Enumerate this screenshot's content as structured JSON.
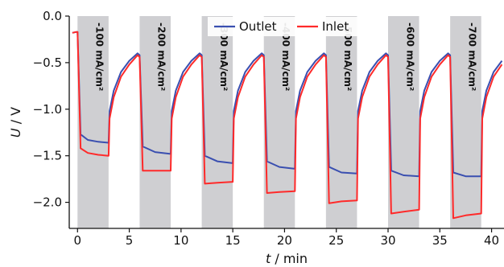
{
  "chart_data": {
    "type": "line",
    "xlabel_var": "t",
    "xlabel_unit": " / min",
    "ylabel_var": "U",
    "ylabel_unit": " / V",
    "xlim": [
      -0.8,
      41.2
    ],
    "ylim": [
      -2.28,
      0.0
    ],
    "xticks": [
      0,
      5,
      10,
      15,
      20,
      25,
      30,
      35,
      40
    ],
    "yticks": [
      0.0,
      -0.5,
      -1.0,
      -1.5,
      -2.0
    ],
    "ytick_labels": [
      "0.0",
      "−0.5",
      "−1.0",
      "−1.5",
      "−2.0"
    ],
    "grid": false,
    "legend_position": "top-center",
    "colors": {
      "outlet": "#3a4fb0",
      "inlet": "#ff2a2a",
      "band": "#cfcfd2"
    },
    "current_steps": [
      {
        "label": "-100 mA/cm²",
        "t_start": 0,
        "t_end": 3,
        "outlet_plateau": -1.36,
        "inlet_plateau": -1.5
      },
      {
        "label": "-200 mA/cm²",
        "t_start": 6,
        "t_end": 9,
        "outlet_plateau": -1.48,
        "inlet_plateau": -1.66
      },
      {
        "label": "-300 mA/cm²",
        "t_start": 12,
        "t_end": 15,
        "outlet_plateau": -1.58,
        "inlet_plateau": -1.78
      },
      {
        "label": "-400 mA/cm²",
        "t_start": 18,
        "t_end": 21,
        "outlet_plateau": -1.64,
        "inlet_plateau": -1.88
      },
      {
        "label": "-500 mA/cm²",
        "t_start": 24,
        "t_end": 27,
        "outlet_plateau": -1.69,
        "inlet_plateau": -1.98
      },
      {
        "label": "-600 mA/cm²",
        "t_start": 30,
        "t_end": 33,
        "outlet_plateau": -1.72,
        "inlet_plateau": -2.08
      },
      {
        "label": "-700 mA/cm²",
        "t_start": 36,
        "t_end": 39,
        "outlet_plateau": -1.72,
        "inlet_plateau": -2.12
      }
    ],
    "series": [
      {
        "name": "Outlet",
        "x": [
          -0.5,
          -0.1,
          0.0,
          0.3,
          1.0,
          2.0,
          3.0,
          3.1,
          3.5,
          4.2,
          5.0,
          5.8,
          6.0,
          6.3,
          7.5,
          9.0,
          9.1,
          9.5,
          10.2,
          11.0,
          11.8,
          12.0,
          12.3,
          13.5,
          15.0,
          15.1,
          15.5,
          16.2,
          17.0,
          17.8,
          18.0,
          18.3,
          19.5,
          21.0,
          21.1,
          21.5,
          22.2,
          23.0,
          23.8,
          24.0,
          24.3,
          25.5,
          27.0,
          27.1,
          27.5,
          28.2,
          29.0,
          29.8,
          30.0,
          30.3,
          31.5,
          33.0,
          33.1,
          33.5,
          34.2,
          35.0,
          35.8,
          36.0,
          36.3,
          37.5,
          39.0,
          39.1,
          39.5,
          40.2,
          41.0
        ],
        "y": [
          -0.18,
          -0.17,
          -0.17,
          -1.27,
          -1.33,
          -1.35,
          -1.36,
          -1.02,
          -0.8,
          -0.6,
          -0.48,
          -0.4,
          -0.42,
          -1.4,
          -1.46,
          -1.48,
          -1.02,
          -0.8,
          -0.6,
          -0.48,
          -0.4,
          -0.42,
          -1.5,
          -1.56,
          -1.58,
          -1.02,
          -0.8,
          -0.6,
          -0.48,
          -0.4,
          -0.42,
          -1.56,
          -1.62,
          -1.64,
          -1.02,
          -0.8,
          -0.6,
          -0.48,
          -0.4,
          -0.42,
          -1.62,
          -1.68,
          -1.69,
          -1.02,
          -0.8,
          -0.6,
          -0.48,
          -0.4,
          -0.42,
          -1.66,
          -1.71,
          -1.72,
          -1.02,
          -0.8,
          -0.6,
          -0.48,
          -0.4,
          -0.42,
          -1.68,
          -1.72,
          -1.72,
          -1.02,
          -0.8,
          -0.6,
          -0.48
        ]
      },
      {
        "name": "Inlet",
        "x": [
          -0.5,
          -0.1,
          0.0,
          0.3,
          1.0,
          2.0,
          3.0,
          3.1,
          3.5,
          4.2,
          5.0,
          5.8,
          6.0,
          6.3,
          7.5,
          9.0,
          9.1,
          9.5,
          10.2,
          11.0,
          11.8,
          12.0,
          12.3,
          13.5,
          15.0,
          15.1,
          15.5,
          16.2,
          17.0,
          17.8,
          18.0,
          18.3,
          19.5,
          21.0,
          21.1,
          21.5,
          22.2,
          23.0,
          23.8,
          24.0,
          24.3,
          25.5,
          27.0,
          27.1,
          27.5,
          28.2,
          29.0,
          29.8,
          30.0,
          30.3,
          31.5,
          33.0,
          33.1,
          33.5,
          34.2,
          35.0,
          35.8,
          36.0,
          36.3,
          37.5,
          39.0,
          39.1,
          39.5,
          40.2,
          41.0
        ],
        "y": [
          -0.18,
          -0.17,
          -0.17,
          -1.42,
          -1.47,
          -1.49,
          -1.5,
          -1.1,
          -0.87,
          -0.65,
          -0.52,
          -0.42,
          -0.44,
          -1.66,
          -1.66,
          -1.66,
          -1.1,
          -0.87,
          -0.65,
          -0.52,
          -0.42,
          -0.44,
          -1.8,
          -1.79,
          -1.78,
          -1.1,
          -0.87,
          -0.65,
          -0.52,
          -0.42,
          -0.44,
          -1.9,
          -1.89,
          -1.88,
          -1.1,
          -0.87,
          -0.65,
          -0.52,
          -0.42,
          -0.44,
          -2.01,
          -1.99,
          -1.98,
          -1.1,
          -0.87,
          -0.65,
          -0.52,
          -0.42,
          -0.44,
          -2.12,
          -2.1,
          -2.08,
          -1.1,
          -0.87,
          -0.65,
          -0.52,
          -0.42,
          -0.44,
          -2.17,
          -2.14,
          -2.12,
          -1.1,
          -0.87,
          -0.65,
          -0.52
        ]
      }
    ]
  }
}
